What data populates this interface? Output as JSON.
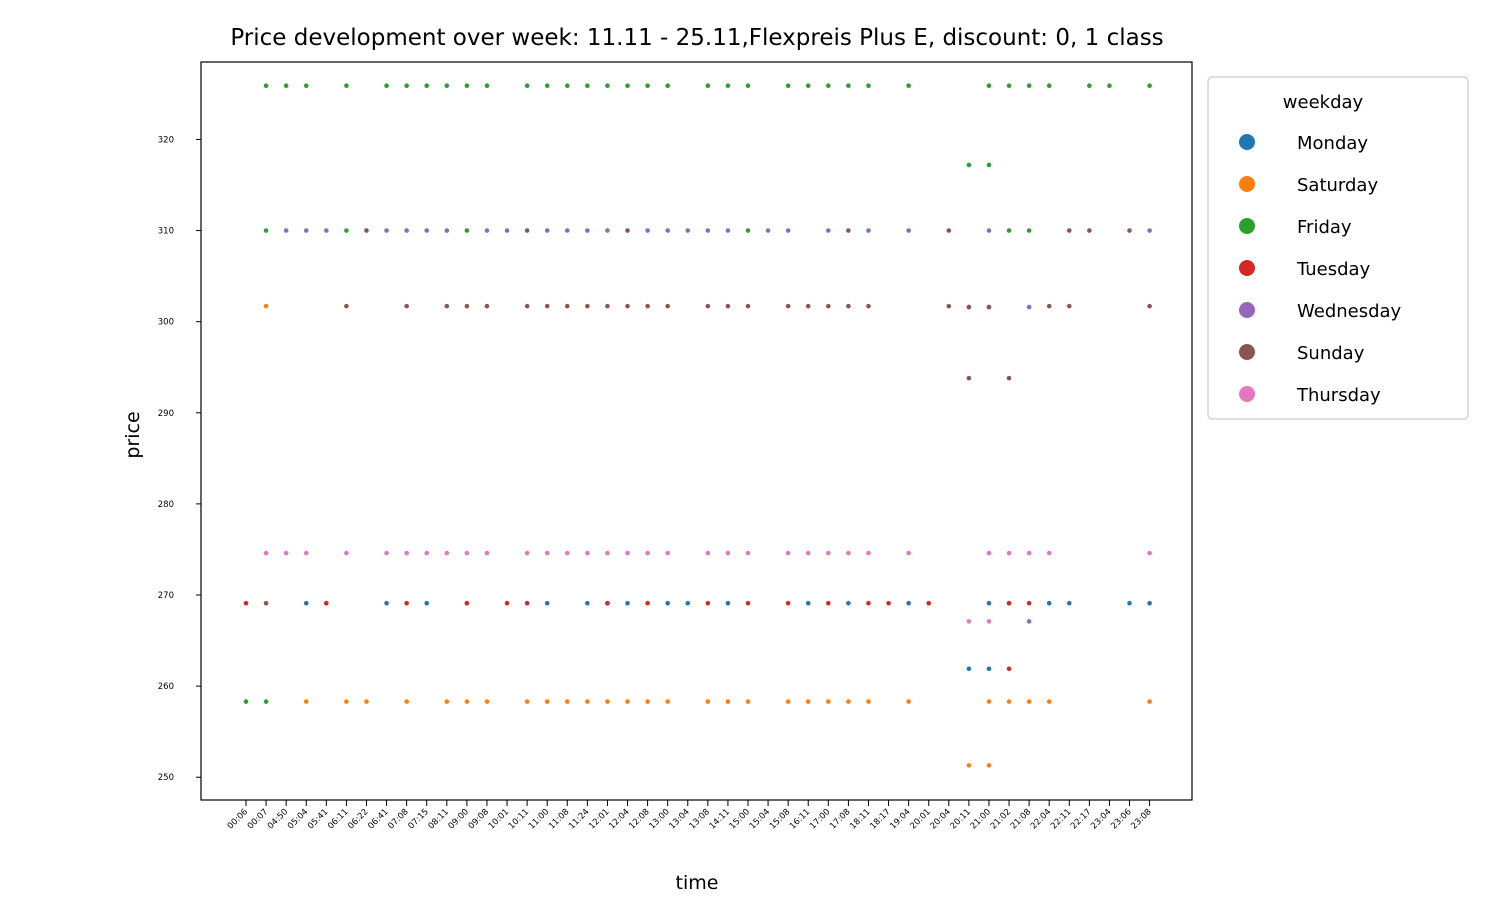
{
  "chart_data": {
    "type": "scatter",
    "title": "Price development over week: 11.11 - 25.11,Flexpreis Plus E, discount: 0, 1 class",
    "xlabel": "time",
    "ylabel": "price",
    "ylim": [
      247.5,
      328.5
    ],
    "yticks": [
      250,
      260,
      270,
      280,
      290,
      300,
      310,
      320
    ],
    "grid": false,
    "legend": {
      "title": "weekday",
      "placement": "outside-top-right"
    },
    "categories": [
      "00:06",
      "00:07",
      "04:50",
      "05:04",
      "05:41",
      "06:11",
      "06:22",
      "06:41",
      "07:08",
      "07:15",
      "08:11",
      "09:00",
      "09:08",
      "10:01",
      "10:11",
      "11:00",
      "11:08",
      "11:24",
      "12:01",
      "12:04",
      "12:08",
      "13:00",
      "13:04",
      "13:08",
      "14:11",
      "15:00",
      "15:04",
      "15:08",
      "16:11",
      "17:00",
      "17:08",
      "18:11",
      "18:17",
      "19:04",
      "20:01",
      "20:04",
      "20:11",
      "21:00",
      "21:02",
      "21:08",
      "22:04",
      "22:11",
      "22:17",
      "23:04",
      "23:06",
      "23:08"
    ],
    "series": [
      {
        "name": "Monday",
        "color": "#1f77b4",
        "points": [
          {
            "x": "05:04",
            "y": 269.1
          },
          {
            "x": "05:41",
            "y": 269.1
          },
          {
            "x": "06:41",
            "y": 269.1
          },
          {
            "x": "07:15",
            "y": 269.1
          },
          {
            "x": "09:00",
            "y": 269.1
          },
          {
            "x": "11:00",
            "y": 269.1
          },
          {
            "x": "11:24",
            "y": 269.1
          },
          {
            "x": "12:01",
            "y": 269.1
          },
          {
            "x": "12:04",
            "y": 269.1
          },
          {
            "x": "13:00",
            "y": 269.1
          },
          {
            "x": "13:04",
            "y": 269.1
          },
          {
            "x": "14:11",
            "y": 269.1
          },
          {
            "x": "16:11",
            "y": 269.1
          },
          {
            "x": "17:08",
            "y": 269.1
          },
          {
            "x": "19:04",
            "y": 269.1
          },
          {
            "x": "21:00",
            "y": 269.1
          },
          {
            "x": "21:02",
            "y": 269.1
          },
          {
            "x": "22:04",
            "y": 269.1
          },
          {
            "x": "22:11",
            "y": 269.1
          },
          {
            "x": "23:06",
            "y": 269.1
          },
          {
            "x": "23:08",
            "y": 269.1
          },
          {
            "x": "20:11",
            "y": 261.9
          },
          {
            "x": "21:00",
            "y": 261.9
          }
        ]
      },
      {
        "name": "Saturday",
        "color": "#ff7f0e",
        "points": [
          {
            "x": "00:07",
            "y": 301.7
          },
          {
            "x": "05:04",
            "y": 258.3
          },
          {
            "x": "06:11",
            "y": 258.3
          },
          {
            "x": "06:22",
            "y": 258.3
          },
          {
            "x": "07:08",
            "y": 258.3
          },
          {
            "x": "08:11",
            "y": 258.3
          },
          {
            "x": "09:00",
            "y": 258.3
          },
          {
            "x": "09:08",
            "y": 258.3
          },
          {
            "x": "10:11",
            "y": 258.3
          },
          {
            "x": "11:00",
            "y": 258.3
          },
          {
            "x": "11:08",
            "y": 258.3
          },
          {
            "x": "11:24",
            "y": 258.3
          },
          {
            "x": "12:01",
            "y": 258.3
          },
          {
            "x": "12:04",
            "y": 258.3
          },
          {
            "x": "12:08",
            "y": 258.3
          },
          {
            "x": "13:00",
            "y": 258.3
          },
          {
            "x": "13:08",
            "y": 258.3
          },
          {
            "x": "14:11",
            "y": 258.3
          },
          {
            "x": "15:00",
            "y": 258.3
          },
          {
            "x": "15:08",
            "y": 258.3
          },
          {
            "x": "16:11",
            "y": 258.3
          },
          {
            "x": "17:00",
            "y": 258.3
          },
          {
            "x": "17:08",
            "y": 258.3
          },
          {
            "x": "18:11",
            "y": 258.3
          },
          {
            "x": "19:04",
            "y": 258.3
          },
          {
            "x": "21:00",
            "y": 258.3
          },
          {
            "x": "21:02",
            "y": 258.3
          },
          {
            "x": "21:08",
            "y": 258.3
          },
          {
            "x": "22:04",
            "y": 258.3
          },
          {
            "x": "23:08",
            "y": 258.3
          },
          {
            "x": "20:11",
            "y": 251.3
          },
          {
            "x": "21:00",
            "y": 251.3
          }
        ]
      },
      {
        "name": "Friday",
        "color": "#2ca02c",
        "points": [
          {
            "x": "00:07",
            "y": 325.9
          },
          {
            "x": "04:50",
            "y": 325.9
          },
          {
            "x": "05:04",
            "y": 325.9
          },
          {
            "x": "06:11",
            "y": 325.9
          },
          {
            "x": "06:41",
            "y": 325.9
          },
          {
            "x": "07:08",
            "y": 325.9
          },
          {
            "x": "07:15",
            "y": 325.9
          },
          {
            "x": "08:11",
            "y": 325.9
          },
          {
            "x": "09:00",
            "y": 325.9
          },
          {
            "x": "09:08",
            "y": 325.9
          },
          {
            "x": "10:11",
            "y": 325.9
          },
          {
            "x": "11:00",
            "y": 325.9
          },
          {
            "x": "11:08",
            "y": 325.9
          },
          {
            "x": "11:24",
            "y": 325.9
          },
          {
            "x": "12:01",
            "y": 325.9
          },
          {
            "x": "12:04",
            "y": 325.9
          },
          {
            "x": "12:08",
            "y": 325.9
          },
          {
            "x": "13:00",
            "y": 325.9
          },
          {
            "x": "13:08",
            "y": 325.9
          },
          {
            "x": "14:11",
            "y": 325.9
          },
          {
            "x": "15:00",
            "y": 325.9
          },
          {
            "x": "15:08",
            "y": 325.9
          },
          {
            "x": "16:11",
            "y": 325.9
          },
          {
            "x": "17:00",
            "y": 325.9
          },
          {
            "x": "17:08",
            "y": 325.9
          },
          {
            "x": "18:11",
            "y": 325.9
          },
          {
            "x": "19:04",
            "y": 325.9
          },
          {
            "x": "21:00",
            "y": 325.9
          },
          {
            "x": "21:02",
            "y": 325.9
          },
          {
            "x": "21:08",
            "y": 325.9
          },
          {
            "x": "22:04",
            "y": 325.9
          },
          {
            "x": "22:17",
            "y": 325.9
          },
          {
            "x": "23:04",
            "y": 325.9
          },
          {
            "x": "23:08",
            "y": 325.9
          },
          {
            "x": "20:11",
            "y": 317.2
          },
          {
            "x": "21:00",
            "y": 317.2
          },
          {
            "x": "00:07",
            "y": 310.0
          },
          {
            "x": "06:11",
            "y": 310.0
          },
          {
            "x": "09:00",
            "y": 310.0
          },
          {
            "x": "15:00",
            "y": 310.0
          },
          {
            "x": "21:02",
            "y": 310.0
          },
          {
            "x": "21:08",
            "y": 310.0
          },
          {
            "x": "00:06",
            "y": 258.3
          },
          {
            "x": "00:07",
            "y": 258.3
          }
        ]
      },
      {
        "name": "Tuesday",
        "color": "#d62728",
        "points": [
          {
            "x": "00:06",
            "y": 269.1
          },
          {
            "x": "05:41",
            "y": 269.1
          },
          {
            "x": "07:08",
            "y": 269.1
          },
          {
            "x": "09:00",
            "y": 269.1
          },
          {
            "x": "10:01",
            "y": 269.1
          },
          {
            "x": "10:11",
            "y": 269.1
          },
          {
            "x": "12:01",
            "y": 269.1
          },
          {
            "x": "12:08",
            "y": 269.1
          },
          {
            "x": "13:08",
            "y": 269.1
          },
          {
            "x": "15:00",
            "y": 269.1
          },
          {
            "x": "15:08",
            "y": 269.1
          },
          {
            "x": "17:00",
            "y": 269.1
          },
          {
            "x": "18:11",
            "y": 269.1
          },
          {
            "x": "18:17",
            "y": 269.1
          },
          {
            "x": "20:01",
            "y": 269.1
          },
          {
            "x": "21:02",
            "y": 269.1
          },
          {
            "x": "21:08",
            "y": 269.1
          },
          {
            "x": "21:02",
            "y": 261.9
          }
        ]
      },
      {
        "name": "Wednesday",
        "color": "#9467bd",
        "points": [
          {
            "x": "04:50",
            "y": 310.0
          },
          {
            "x": "05:04",
            "y": 310.0
          },
          {
            "x": "05:41",
            "y": 310.0
          },
          {
            "x": "06:41",
            "y": 310.0
          },
          {
            "x": "07:08",
            "y": 310.0
          },
          {
            "x": "07:15",
            "y": 310.0
          },
          {
            "x": "08:11",
            "y": 310.0
          },
          {
            "x": "09:08",
            "y": 310.0
          },
          {
            "x": "10:01",
            "y": 310.0
          },
          {
            "x": "11:00",
            "y": 310.0
          },
          {
            "x": "11:08",
            "y": 310.0
          },
          {
            "x": "11:24",
            "y": 310.0
          },
          {
            "x": "12:01",
            "y": 310.0
          },
          {
            "x": "12:08",
            "y": 310.0
          },
          {
            "x": "13:00",
            "y": 310.0
          },
          {
            "x": "13:04",
            "y": 310.0
          },
          {
            "x": "13:08",
            "y": 310.0
          },
          {
            "x": "14:11",
            "y": 310.0
          },
          {
            "x": "15:04",
            "y": 310.0
          },
          {
            "x": "15:08",
            "y": 310.0
          },
          {
            "x": "17:00",
            "y": 310.0
          },
          {
            "x": "18:11",
            "y": 310.0
          },
          {
            "x": "19:04",
            "y": 310.0
          },
          {
            "x": "21:00",
            "y": 310.0
          },
          {
            "x": "23:08",
            "y": 310.0
          },
          {
            "x": "20:11",
            "y": 301.6
          },
          {
            "x": "21:00",
            "y": 301.6
          },
          {
            "x": "21:08",
            "y": 301.6
          },
          {
            "x": "21:08",
            "y": 267.1
          }
        ]
      },
      {
        "name": "Sunday",
        "color": "#8c564b",
        "points": [
          {
            "x": "00:07",
            "y": 269.1
          },
          {
            "x": "06:11",
            "y": 301.7
          },
          {
            "x": "06:22",
            "y": 310.0
          },
          {
            "x": "07:08",
            "y": 301.7
          },
          {
            "x": "08:11",
            "y": 301.7
          },
          {
            "x": "09:00",
            "y": 301.7
          },
          {
            "x": "09:08",
            "y": 301.7
          },
          {
            "x": "10:11",
            "y": 310.0
          },
          {
            "x": "10:11",
            "y": 301.7
          },
          {
            "x": "11:00",
            "y": 301.7
          },
          {
            "x": "11:08",
            "y": 301.7
          },
          {
            "x": "11:24",
            "y": 301.7
          },
          {
            "x": "12:01",
            "y": 301.7
          },
          {
            "x": "12:04",
            "y": 310.0
          },
          {
            "x": "12:04",
            "y": 301.7
          },
          {
            "x": "12:08",
            "y": 301.7
          },
          {
            "x": "13:00",
            "y": 301.7
          },
          {
            "x": "13:08",
            "y": 301.7
          },
          {
            "x": "14:11",
            "y": 301.7
          },
          {
            "x": "15:00",
            "y": 301.7
          },
          {
            "x": "15:08",
            "y": 301.7
          },
          {
            "x": "16:11",
            "y": 301.7
          },
          {
            "x": "17:00",
            "y": 301.7
          },
          {
            "x": "17:08",
            "y": 310.0
          },
          {
            "x": "17:08",
            "y": 301.7
          },
          {
            "x": "18:11",
            "y": 301.7
          },
          {
            "x": "20:04",
            "y": 310.0
          },
          {
            "x": "20:04",
            "y": 301.7
          },
          {
            "x": "20:11",
            "y": 301.6
          },
          {
            "x": "21:00",
            "y": 301.6
          },
          {
            "x": "22:04",
            "y": 301.7
          },
          {
            "x": "22:11",
            "y": 301.7
          },
          {
            "x": "22:11",
            "y": 310.0
          },
          {
            "x": "22:17",
            "y": 310.0
          },
          {
            "x": "23:06",
            "y": 310.0
          },
          {
            "x": "23:08",
            "y": 301.7
          },
          {
            "x": "20:11",
            "y": 293.8
          },
          {
            "x": "21:02",
            "y": 293.8
          }
        ]
      },
      {
        "name": "Thursday",
        "color": "#e377c2",
        "points": [
          {
            "x": "00:07",
            "y": 274.6
          },
          {
            "x": "04:50",
            "y": 274.6
          },
          {
            "x": "05:04",
            "y": 274.6
          },
          {
            "x": "06:11",
            "y": 274.6
          },
          {
            "x": "06:41",
            "y": 274.6
          },
          {
            "x": "07:08",
            "y": 274.6
          },
          {
            "x": "07:15",
            "y": 274.6
          },
          {
            "x": "08:11",
            "y": 274.6
          },
          {
            "x": "09:00",
            "y": 274.6
          },
          {
            "x": "09:08",
            "y": 274.6
          },
          {
            "x": "10:11",
            "y": 274.6
          },
          {
            "x": "11:00",
            "y": 274.6
          },
          {
            "x": "11:08",
            "y": 274.6
          },
          {
            "x": "11:24",
            "y": 274.6
          },
          {
            "x": "12:01",
            "y": 274.6
          },
          {
            "x": "12:04",
            "y": 274.6
          },
          {
            "x": "12:08",
            "y": 274.6
          },
          {
            "x": "13:00",
            "y": 274.6
          },
          {
            "x": "13:08",
            "y": 274.6
          },
          {
            "x": "14:11",
            "y": 274.6
          },
          {
            "x": "15:00",
            "y": 274.6
          },
          {
            "x": "15:08",
            "y": 274.6
          },
          {
            "x": "16:11",
            "y": 274.6
          },
          {
            "x": "17:00",
            "y": 274.6
          },
          {
            "x": "17:08",
            "y": 274.6
          },
          {
            "x": "18:11",
            "y": 274.6
          },
          {
            "x": "19:04",
            "y": 274.6
          },
          {
            "x": "21:00",
            "y": 274.6
          },
          {
            "x": "21:02",
            "y": 274.6
          },
          {
            "x": "21:08",
            "y": 274.6
          },
          {
            "x": "22:04",
            "y": 274.6
          },
          {
            "x": "23:08",
            "y": 274.6
          },
          {
            "x": "20:11",
            "y": 267.1
          },
          {
            "x": "21:00",
            "y": 267.1
          }
        ]
      }
    ]
  }
}
